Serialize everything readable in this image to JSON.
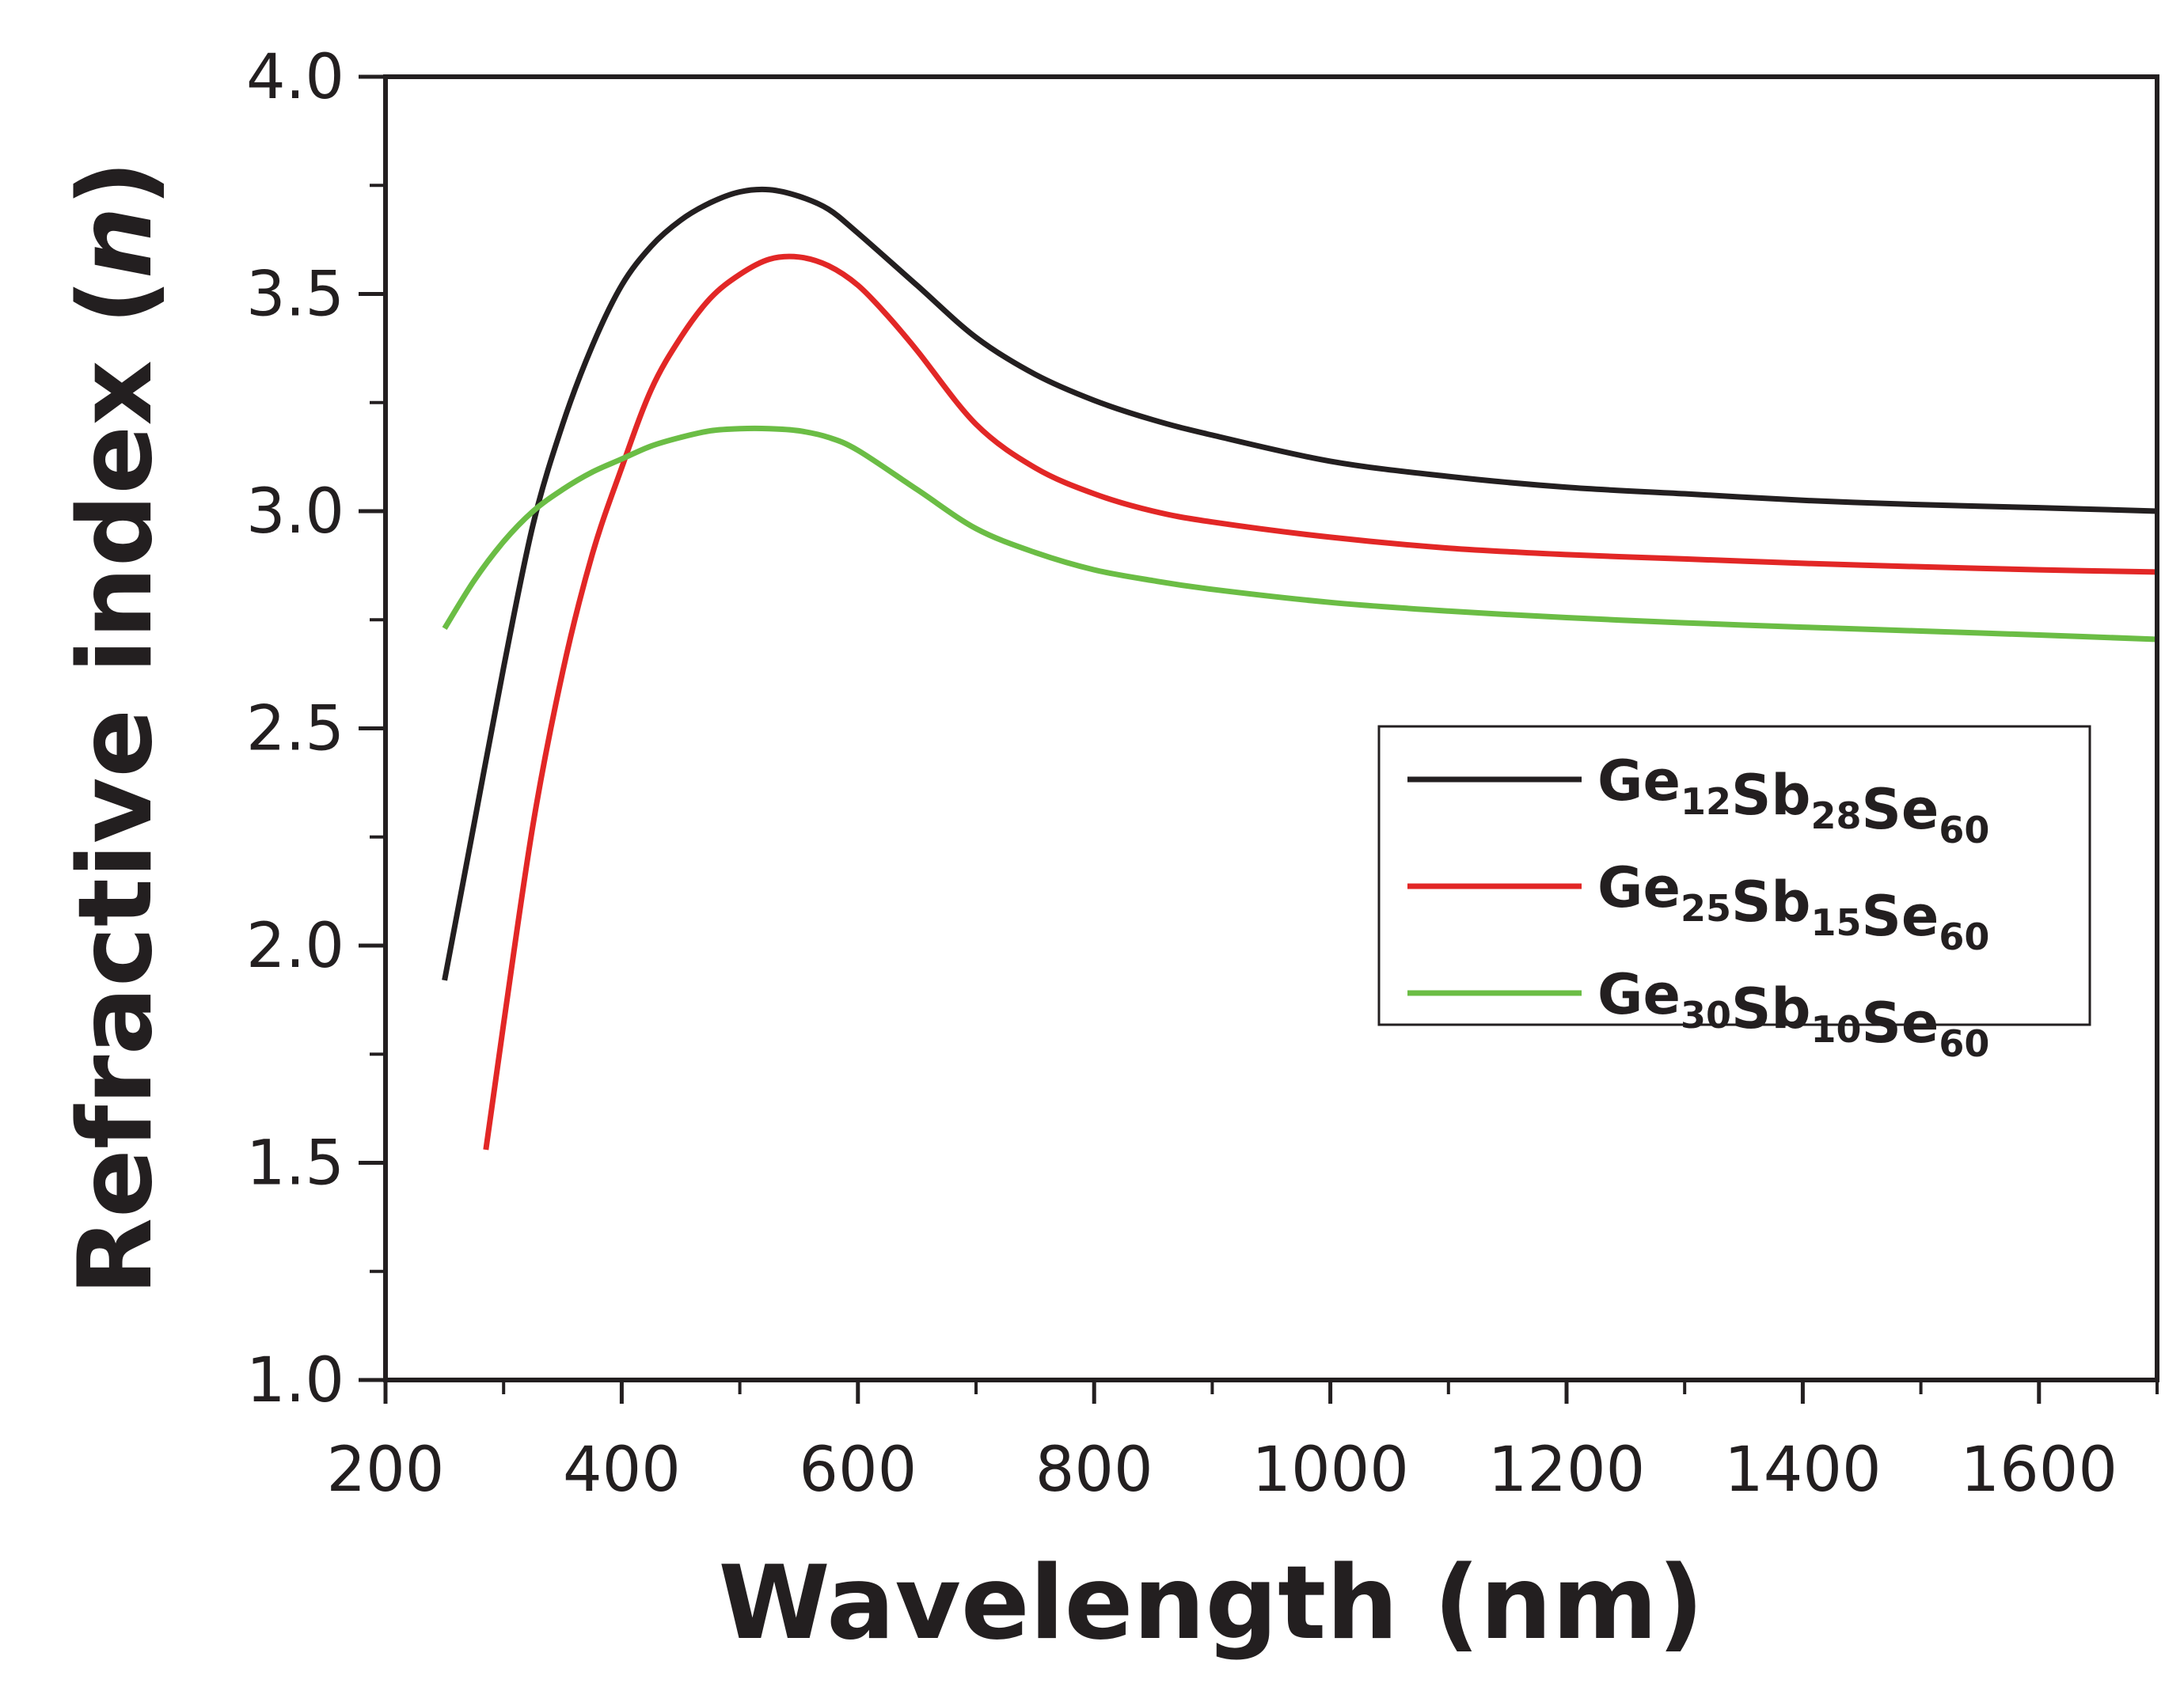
{
  "chart_data": {
    "type": "line",
    "title": "",
    "xlabel": "Wavelength (nm)",
    "ylabel": {
      "main": "Refractive index (",
      "var": "n",
      "close": ")"
    },
    "xlim": [
      200,
      1700
    ],
    "ylim": [
      1.0,
      4.0
    ],
    "xticks": [
      200,
      400,
      600,
      800,
      1000,
      1200,
      1400,
      1600
    ],
    "xtick_labels": [
      "200",
      "400",
      "600",
      "800",
      "1000",
      "1200",
      "1400",
      "1600"
    ],
    "xminor": [
      300,
      500,
      700,
      900,
      1100,
      1300,
      1500,
      1700
    ],
    "yticks": [
      1.0,
      1.5,
      2.0,
      2.5,
      3.0,
      3.5,
      4.0
    ],
    "ytick_labels": [
      "1.0",
      "1.5",
      "2.0",
      "2.5",
      "3.0",
      "3.5",
      "4.0"
    ],
    "yminor": [
      1.25,
      1.75,
      2.25,
      2.75,
      3.25,
      3.75
    ],
    "legend_position": "center-right",
    "series": [
      {
        "name": "Ge12Sb28Se60",
        "label_parts": [
          {
            "t": "Ge",
            "sub": "12"
          },
          {
            "t": "Sb",
            "sub": "28"
          },
          {
            "t": "Se",
            "sub": "60"
          }
        ],
        "color": "#231f20",
        "x": [
          250,
          275,
          300,
          325,
          350,
          375,
          400,
          425,
          450,
          475,
          500,
          525,
          550,
          575,
          600,
          650,
          700,
          750,
          800,
          850,
          900,
          1000,
          1100,
          1200,
          1300,
          1400,
          1500,
          1600,
          1700
        ],
        "y": [
          1.92,
          2.28,
          2.64,
          2.97,
          3.2,
          3.38,
          3.52,
          3.61,
          3.67,
          3.71,
          3.735,
          3.74,
          3.725,
          3.695,
          3.64,
          3.52,
          3.4,
          3.315,
          3.255,
          3.21,
          3.175,
          3.115,
          3.08,
          3.055,
          3.04,
          3.025,
          3.015,
          3.008,
          3.0
        ]
      },
      {
        "name": "Ge25Sb15Se60",
        "label_parts": [
          {
            "t": "Ge",
            "sub": "25"
          },
          {
            "t": "Sb",
            "sub": "15"
          },
          {
            "t": "Se",
            "sub": "60"
          }
        ],
        "color": "#e22726",
        "x": [
          285,
          300,
          325,
          350,
          375,
          400,
          425,
          450,
          475,
          500,
          525,
          550,
          575,
          600,
          625,
          650,
          700,
          750,
          800,
          850,
          900,
          1000,
          1100,
          1200,
          1300,
          1400,
          1500,
          1600,
          1700
        ],
        "y": [
          1.53,
          1.82,
          2.28,
          2.63,
          2.9,
          3.1,
          3.28,
          3.4,
          3.49,
          3.545,
          3.58,
          3.585,
          3.565,
          3.52,
          3.45,
          3.37,
          3.2,
          3.1,
          3.04,
          3.0,
          2.975,
          2.94,
          2.915,
          2.9,
          2.89,
          2.88,
          2.872,
          2.865,
          2.86
        ]
      },
      {
        "name": "Ge30Sb10Se60",
        "label_parts": [
          {
            "t": "Ge",
            "sub": "30"
          },
          {
            "t": "Sb",
            "sub": "10"
          },
          {
            "t": "Se",
            "sub": "60"
          }
        ],
        "color": "#6bbd45",
        "x": [
          250,
          275,
          300,
          325,
          350,
          375,
          400,
          425,
          450,
          475,
          500,
          525,
          550,
          575,
          600,
          650,
          700,
          750,
          800,
          850,
          900,
          1000,
          1100,
          1200,
          1300,
          1400,
          1500,
          1600,
          1700
        ],
        "y": [
          2.73,
          2.84,
          2.93,
          3.0,
          3.05,
          3.09,
          3.12,
          3.15,
          3.17,
          3.185,
          3.19,
          3.19,
          3.185,
          3.17,
          3.14,
          3.05,
          2.96,
          2.905,
          2.865,
          2.84,
          2.82,
          2.79,
          2.77,
          2.755,
          2.743,
          2.733,
          2.724,
          2.715,
          2.705
        ]
      }
    ]
  }
}
